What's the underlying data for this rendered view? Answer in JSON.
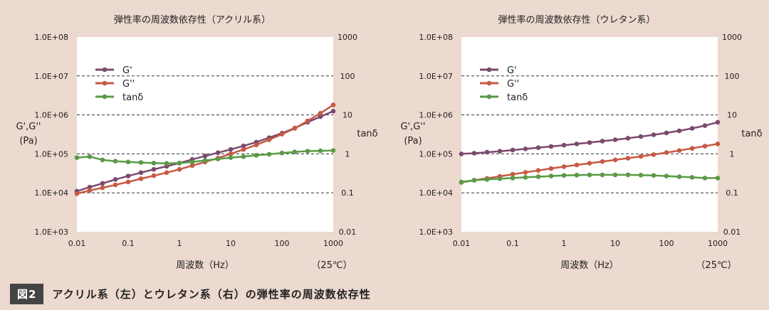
{
  "caption": {
    "label": "図2",
    "text": "アクリル系（左）とウレタン系（右）の弾性率の周波数依存性"
  },
  "colors": {
    "background": "#ecd9cf",
    "plot_bg": "#ffffff",
    "g_prime": "#7a4a6e",
    "g_double": "#c65a44",
    "tan_delta": "#5a9a46"
  },
  "chart_data": [
    {
      "type": "line",
      "title": "弾性率の周波数依存性（アクリル系）",
      "xlabel": "周波数（Hz）",
      "temperature": "（25℃）",
      "ylabel": [
        "G',G''",
        "(Pa)"
      ],
      "y2label": "tanδ",
      "xscale": "log",
      "yscale": "log",
      "y2scale": "log",
      "xlim": [
        0.01,
        1000
      ],
      "ylim": [
        1000,
        100000000
      ],
      "y2lim": [
        0.01,
        1000
      ],
      "x_ticks": [
        "0.01",
        "0.1",
        "1",
        "10",
        "100",
        "1000"
      ],
      "y_ticks": [
        "1.0E+03",
        "1.0E+04",
        "1.0E+05",
        "1.0E+06",
        "1.0E+07",
        "1.0E+08"
      ],
      "y2_ticks": [
        "0.01",
        "0.1",
        "1",
        "10",
        "100",
        "1000"
      ],
      "grid": "horizontal dashed",
      "legend": "top-left",
      "series": [
        {
          "name": "G'",
          "axis": "left",
          "x": [
            0.01,
            0.0178,
            0.0316,
            0.0562,
            0.1,
            0.178,
            0.316,
            0.562,
            1,
            1.78,
            3.16,
            5.62,
            10,
            17.8,
            31.6,
            56.2,
            100,
            178,
            316,
            562,
            1000
          ],
          "y": [
            11000,
            14000,
            17500,
            22000,
            27000,
            33000,
            40000,
            48000,
            58000,
            72000,
            88000,
            107000,
            130000,
            160000,
            200000,
            260000,
            340000,
            460000,
            650000,
            900000,
            1250000
          ]
        },
        {
          "name": "G''",
          "axis": "left",
          "x": [
            0.01,
            0.0178,
            0.0316,
            0.0562,
            0.1,
            0.178,
            0.316,
            0.562,
            1,
            1.78,
            3.16,
            5.62,
            10,
            17.8,
            31.6,
            56.2,
            100,
            178,
            316,
            562,
            1000
          ],
          "y": [
            9500,
            11500,
            13500,
            16000,
            19000,
            23000,
            27500,
            33000,
            40000,
            50000,
            62000,
            78000,
            100000,
            130000,
            170000,
            230000,
            320000,
            450000,
            700000,
            1100000,
            1800000
          ]
        },
        {
          "name": "tanδ",
          "axis": "right",
          "x": [
            0.01,
            0.0178,
            0.0316,
            0.0562,
            0.1,
            0.178,
            0.316,
            0.562,
            1,
            1.78,
            3.16,
            5.62,
            10,
            17.8,
            31.6,
            56.2,
            100,
            178,
            316,
            562,
            1000
          ],
          "y": [
            0.8,
            0.85,
            0.7,
            0.65,
            0.62,
            0.6,
            0.58,
            0.57,
            0.58,
            0.62,
            0.68,
            0.74,
            0.8,
            0.85,
            0.92,
            0.98,
            1.05,
            1.12,
            1.18,
            1.2,
            1.22
          ]
        }
      ]
    },
    {
      "type": "line",
      "title": "弾性率の周波数依存性（ウレタン系）",
      "xlabel": "周波数（Hz）",
      "temperature": "（25℃）",
      "ylabel": [
        "G',G''",
        "(Pa)"
      ],
      "y2label": "tanδ",
      "xscale": "log",
      "yscale": "log",
      "y2scale": "log",
      "xlim": [
        0.01,
        1000
      ],
      "ylim": [
        1000,
        100000000
      ],
      "y2lim": [
        0.01,
        1000
      ],
      "x_ticks": [
        "0.01",
        "0.1",
        "1",
        "10",
        "100",
        "1000"
      ],
      "y_ticks": [
        "1.0E+03",
        "1.0E+04",
        "1.0E+05",
        "1.0E+06",
        "1.0E+07",
        "1.0E+08"
      ],
      "y2_ticks": [
        "0.01",
        "0.1",
        "1",
        "10",
        "100",
        "1000"
      ],
      "grid": "horizontal dashed",
      "legend": "top-left",
      "series": [
        {
          "name": "G'",
          "axis": "left",
          "x": [
            0.01,
            0.0178,
            0.0316,
            0.0562,
            0.1,
            0.178,
            0.316,
            0.562,
            1,
            1.78,
            3.16,
            5.62,
            10,
            17.8,
            31.6,
            56.2,
            100,
            178,
            316,
            562,
            1000
          ],
          "y": [
            100000,
            104000,
            110000,
            117000,
            125000,
            134000,
            144000,
            155000,
            167000,
            180000,
            195000,
            212000,
            230000,
            252000,
            278000,
            308000,
            345000,
            390000,
            450000,
            530000,
            650000
          ]
        },
        {
          "name": "G''",
          "axis": "left",
          "x": [
            0.01,
            0.0178,
            0.0316,
            0.0562,
            0.1,
            0.178,
            0.316,
            0.562,
            1,
            1.78,
            3.16,
            5.62,
            10,
            17.8,
            31.6,
            56.2,
            100,
            178,
            316,
            562,
            1000
          ],
          "y": [
            18500,
            21000,
            23500,
            26500,
            30000,
            33500,
            37500,
            42000,
            47000,
            52000,
            57500,
            63500,
            70000,
            77500,
            86000,
            96000,
            108000,
            122000,
            138000,
            158000,
            180000
          ]
        },
        {
          "name": "tanδ",
          "axis": "right",
          "x": [
            0.01,
            0.0178,
            0.0316,
            0.0562,
            0.1,
            0.178,
            0.316,
            0.562,
            1,
            1.78,
            3.16,
            5.62,
            10,
            17.8,
            31.6,
            56.2,
            100,
            178,
            316,
            562,
            1000
          ],
          "y": [
            0.19,
            0.21,
            0.22,
            0.23,
            0.24,
            0.25,
            0.26,
            0.27,
            0.28,
            0.285,
            0.29,
            0.29,
            0.29,
            0.29,
            0.285,
            0.28,
            0.27,
            0.26,
            0.25,
            0.24,
            0.24
          ]
        }
      ]
    }
  ]
}
